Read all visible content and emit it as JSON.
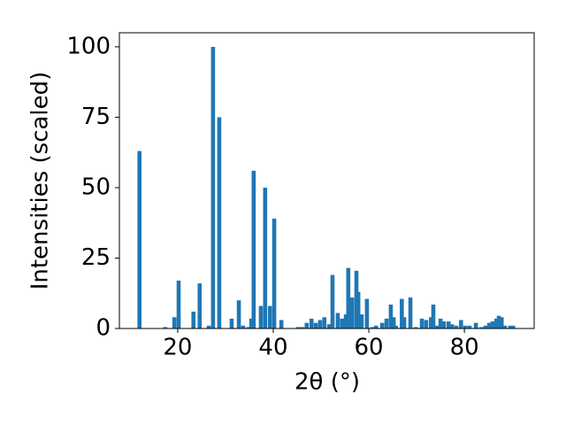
{
  "chart_data": {
    "type": "bar",
    "x_label": "2θ (°)",
    "y_label": "Intensities (scaled)",
    "color": "#1f77b4",
    "x": [
      12.0,
      17.4,
      19.3,
      20.2,
      23.3,
      24.6,
      26.5,
      27.4,
      28.7,
      31.3,
      32.8,
      33.7,
      34.8,
      35.4,
      35.9,
      37.4,
      38.3,
      39.3,
      40.2,
      41.7,
      45.2,
      46.1,
      47.0,
      48.0,
      48.9,
      49.8,
      50.7,
      51.7,
      52.4,
      53.5,
      54.4,
      55.2,
      55.7,
      56.5,
      57.4,
      57.8,
      58.5,
      59.6,
      60.7,
      61.5,
      62.8,
      63.7,
      64.6,
      65.2,
      65.7,
      66.9,
      67.4,
      68.7,
      69.8,
      71.1,
      72.0,
      73.0,
      73.5,
      74.3,
      75.0,
      75.7,
      76.7,
      77.4,
      78.3,
      79.3,
      80.2,
      81.1,
      82.4,
      83.5,
      84.4,
      85.2,
      85.9,
      86.7,
      87.2,
      87.8,
      88.5,
      89.6,
      90.2
    ],
    "values": [
      63,
      0.5,
      4,
      17,
      6,
      16,
      1,
      100,
      75,
      3.5,
      10,
      1,
      0.5,
      3.5,
      56,
      8,
      50,
      8,
      39,
      3,
      0.5,
      0.5,
      2,
      3.5,
      2,
      3,
      4,
      1.5,
      19,
      5.5,
      3.5,
      5,
      21.5,
      11,
      20.5,
      13,
      5,
      10.5,
      0.5,
      1,
      2,
      3.5,
      8.5,
      4,
      1,
      10.5,
      4,
      11,
      0.5,
      3.5,
      3,
      4,
      8.5,
      1,
      3.5,
      2.5,
      2.5,
      1.5,
      1,
      3,
      1,
      1,
      2,
      0.5,
      1,
      2,
      2.5,
      3.5,
      4.5,
      4,
      1,
      1,
      1
    ],
    "xlim": [
      7.8,
      94.6
    ],
    "ylim": [
      0,
      105
    ],
    "xticks": [
      20,
      40,
      60,
      80
    ],
    "yticks": [
      0,
      25,
      50,
      75,
      100
    ]
  }
}
